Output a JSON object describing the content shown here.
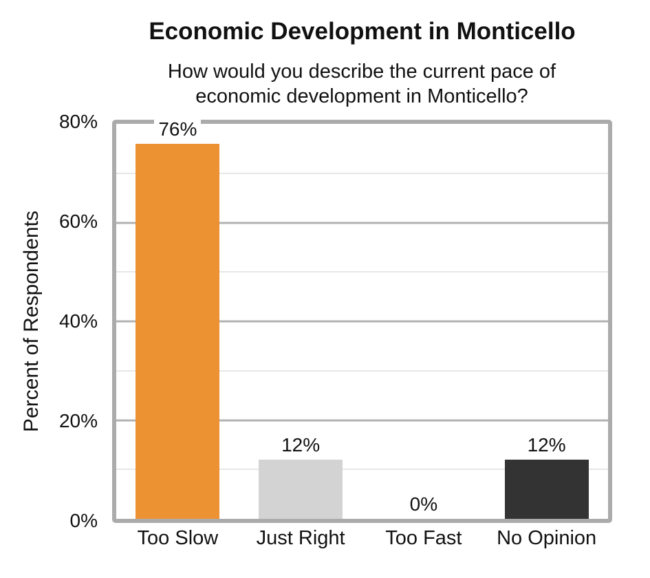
{
  "chart_data": {
    "type": "bar",
    "title": "Economic Development in Monticello",
    "subtitle": "How would you describe the current pace of economic development in Monticello?",
    "ylabel": "Percent of Respondents",
    "xlabel": "",
    "categories": [
      "Too Slow",
      "Just Right",
      "Too Fast",
      "No Opinion"
    ],
    "values": [
      76,
      12,
      0,
      12
    ],
    "data_labels": [
      "76%",
      "12%",
      "0%",
      "12%"
    ],
    "bar_colors": [
      "#EC9233",
      "#D3D3D3",
      null,
      "#333333"
    ],
    "yticks": [
      "80%",
      "60%",
      "40%",
      "20%",
      "0%"
    ],
    "ylim": [
      0,
      80
    ],
    "major_gridline_step": 20,
    "minor_gridline_step": 10,
    "grid": true,
    "legend_position": "none",
    "colors": {
      "plot_border": "#ABABAB",
      "major_gridline": "#B2B2B2",
      "minor_gridline": "#CFCFCF",
      "text": "#111111"
    }
  }
}
